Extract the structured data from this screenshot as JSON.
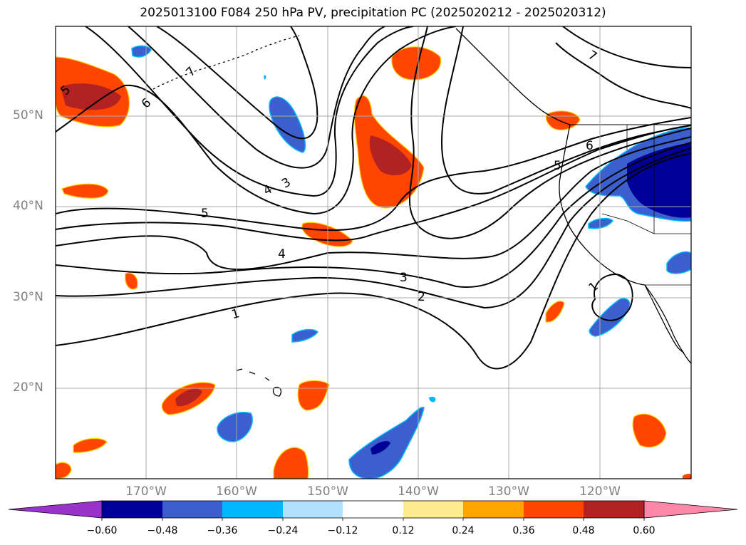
{
  "title": "2025013100 F084 250 hPa PV, precipitation PC (2025020212 - 2025020312)",
  "map": {
    "lat_labels": [
      "50°N",
      "40°N",
      "30°N",
      "20°N"
    ],
    "lon_labels": [
      "170°W",
      "160°W",
      "150°W",
      "140°W",
      "130°W",
      "120°W"
    ],
    "contour_labels": [
      "5",
      "6",
      "7",
      "7",
      "6",
      "5",
      "4",
      "3",
      "5",
      "4",
      "3",
      "2",
      "1",
      "1"
    ]
  },
  "colorbar": {
    "tick_labels": [
      "−0.60",
      "−0.48",
      "−0.36",
      "−0.24",
      "−0.12",
      "0.12",
      "0.24",
      "0.36",
      "0.48",
      "0.60"
    ],
    "colors": [
      "#9933cc",
      "#000099",
      "#3b5fcd",
      "#00b8ff",
      "#b0e2ff",
      "#ffffff",
      "#ffeb8f",
      "#ffa500",
      "#ff4500",
      "#b22222",
      "#ff88aa",
      "#ff88aa"
    ]
  }
}
